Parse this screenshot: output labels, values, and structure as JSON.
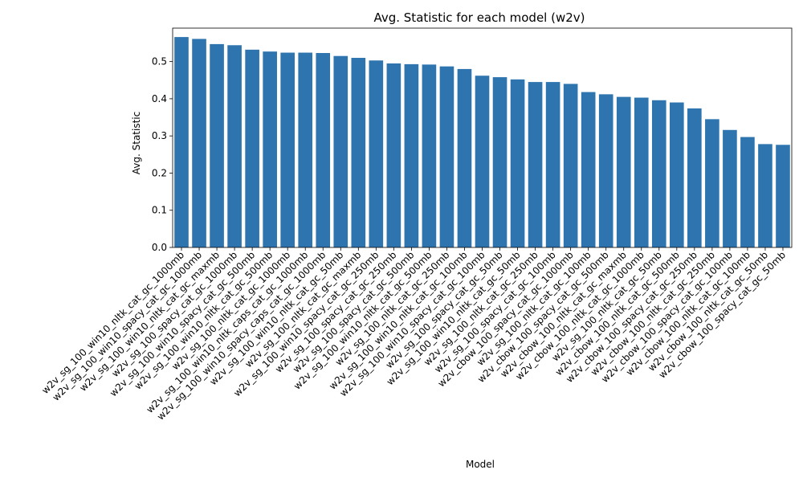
{
  "chart_data": {
    "type": "bar",
    "title": "Avg. Statistic for each model (w2v)",
    "xlabel": "Model",
    "ylabel": "Avg. Statistic",
    "ylim": [
      0,
      0.59
    ],
    "yticks": [
      "0.0",
      "0.1",
      "0.2",
      "0.3",
      "0.4",
      "0.5"
    ],
    "grid": false,
    "bar_color": "#2e75b0",
    "categories": [
      "w2v_sg_100_win10_nltk_cat_gc_1000mb",
      "w2v_sg_100_win10_spacy_cat_gc_1000mb",
      "w2v_sg_100_win10_nltk_cat_gc_maxmb",
      "w2v_sg_100_spacy_cat_gc_1000mb",
      "w2v_sg_100_win10_spacy_cat_gc_500mb",
      "w2v_sg_100_win10_nltk_cat_gc_500mb",
      "w2v_sg_100_nltk_cat_gc_1000mb",
      "w2v_sg_100_win10_nltk_caps_cat_gc_1000mb",
      "w2v_sg_100_win10_spacy_caps_cat_gc_1000mb",
      "w2v_sg_100_win10_nltk_cat_gc_50mb",
      "w2v_sg_100_nltk_cat_gc_maxmb",
      "w2v_sg_100_win10_spacy_cat_gc_250mb",
      "w2v_sg_100_spacy_cat_gc_250mb",
      "w2v_sg_100_spacy_cat_gc_500mb",
      "w2v_sg_100_win10_nltk_cat_gc_500mb",
      "w2v_sg_100_nltk_cat_gc_250mb",
      "w2v_sg_100_win10_nltk_cat_gc_100mb",
      "w2v_sg_100_win10_spacy_cat_gc_100mb",
      "w2v_sg_100_spacy_cat_gc_50mb",
      "w2v_sg_100_win10_nltk_cat_gc_50mb",
      "w2v_sg_100_nltk_cat_gc_250mb",
      "w2v_sg_100_spacy_cat_gc_100mb",
      "w2v_cbow_100_spacy_cat_gc_1000mb",
      "w2v_sg_100_nltk_cat_gc_100mb",
      "w2v_cbow_100_spacy_cat_gc_500mb",
      "w2v_cbow_100_nltk_cat_gc_maxmb",
      "w2v_cbow_100_nltk_cat_gc_1000mb",
      "w2v_sg_100_nltk_cat_gc_50mb",
      "w2v_cbow_100_nltk_cat_gc_500mb",
      "w2v_cbow_100_spacy_cat_gc_250mb",
      "w2v_cbow_100_nltk_cat_gc_250mb",
      "w2v_cbow_100_spacy_cat_gc_100mb",
      "w2v_cbow_100_nltk_cat_gc_100mb",
      "w2v_cbow_100_nltk_cat_gc_50mb",
      "w2v_cbow_100_spacy_cat_gc_50mb"
    ],
    "values": [
      0.566,
      0.561,
      0.547,
      0.544,
      0.532,
      0.527,
      0.524,
      0.524,
      0.523,
      0.515,
      0.51,
      0.503,
      0.495,
      0.493,
      0.492,
      0.487,
      0.48,
      0.462,
      0.458,
      0.452,
      0.445,
      0.445,
      0.44,
      0.418,
      0.412,
      0.405,
      0.403,
      0.396,
      0.39,
      0.374,
      0.345,
      0.316,
      0.297,
      0.278,
      0.276
    ]
  }
}
